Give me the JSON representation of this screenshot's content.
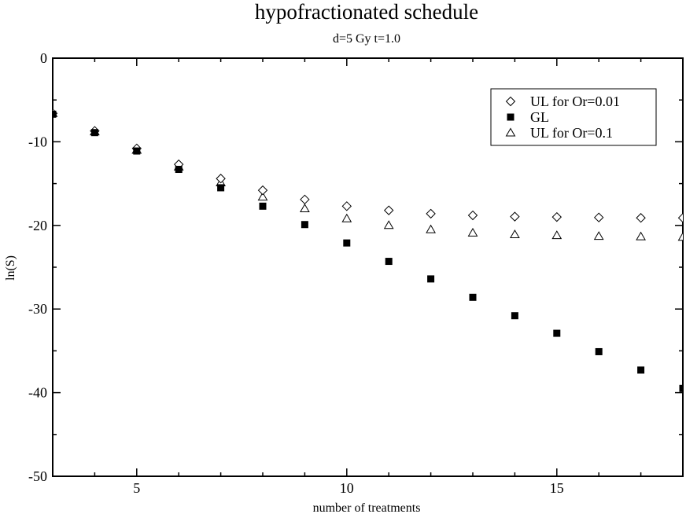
{
  "chart_data": {
    "type": "scatter",
    "title": "hypofractionated schedule",
    "subtitle": "d=5 Gy t=1.0",
    "xlabel": "number of treatments",
    "ylabel": "ln(S)",
    "xlim": [
      3,
      18
    ],
    "ylim": [
      -50,
      0
    ],
    "xticks": [
      5,
      10,
      15
    ],
    "yticks": [
      0,
      -10,
      -20,
      -30,
      -40,
      -50
    ],
    "xtick_labels": [
      "5",
      "10",
      "15"
    ],
    "ytick_labels": [
      "0",
      "-10",
      "-20",
      "-30",
      "-40",
      "-50"
    ],
    "legend_position": "top-right",
    "series": [
      {
        "name": "UL for Or=0.01",
        "marker": "diamond",
        "x": [
          3,
          4,
          5,
          6,
          7,
          8,
          9,
          10,
          11,
          12,
          13,
          14,
          15,
          16,
          17,
          18
        ],
        "y": [
          -6.6,
          -8.7,
          -10.8,
          -12.7,
          -14.4,
          -15.8,
          -16.9,
          -17.7,
          -18.2,
          -18.6,
          -18.8,
          -18.95,
          -19.0,
          -19.05,
          -19.1,
          -19.1
        ]
      },
      {
        "name": "GL",
        "marker": "square",
        "x": [
          3,
          4,
          5,
          6,
          7,
          8,
          9,
          10,
          11,
          12,
          13,
          14,
          15,
          16,
          17,
          18
        ],
        "y": [
          -6.7,
          -8.9,
          -11.1,
          -13.3,
          -15.5,
          -17.7,
          -19.9,
          -22.1,
          -24.3,
          -26.4,
          -28.6,
          -30.8,
          -32.9,
          -35.1,
          -37.3,
          -39.5
        ]
      },
      {
        "name": "UL for Or=0.1",
        "marker": "triangle",
        "x": [
          3,
          4,
          5,
          6,
          7,
          8,
          9,
          10,
          11,
          12,
          13,
          14,
          15,
          16,
          17,
          18
        ],
        "y": [
          -6.6,
          -8.8,
          -11.0,
          -13.0,
          -14.9,
          -16.6,
          -18.0,
          -19.2,
          -20.0,
          -20.5,
          -20.9,
          -21.1,
          -21.2,
          -21.3,
          -21.35,
          -21.4
        ]
      }
    ]
  }
}
